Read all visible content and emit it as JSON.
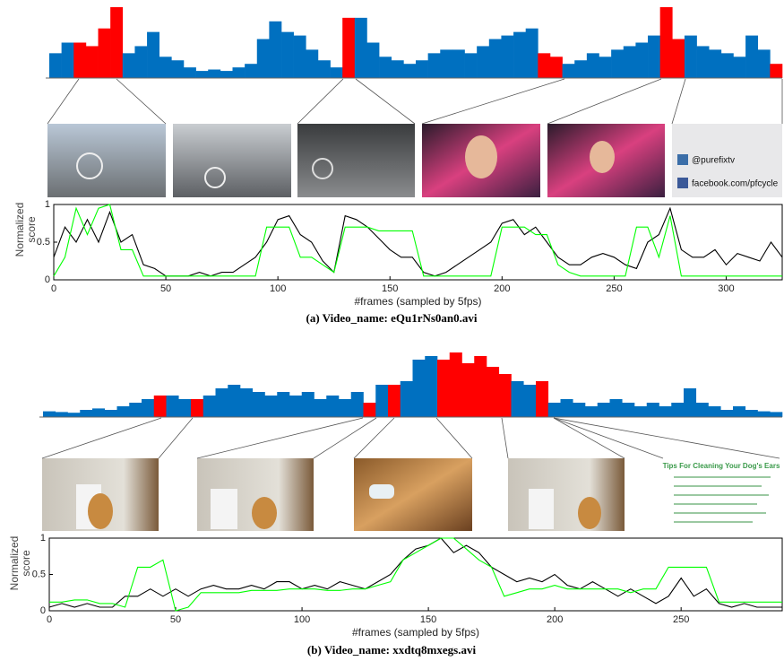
{
  "chart_data": [
    {
      "type": "bar",
      "values": [
        0.35,
        0.5,
        0.5,
        0.45,
        0.7,
        1.0,
        0.35,
        0.45,
        0.65,
        0.3,
        0.25,
        0.15,
        0.1,
        0.12,
        0.1,
        0.15,
        0.2,
        0.55,
        0.8,
        0.65,
        0.6,
        0.4,
        0.25,
        0.15,
        0.85,
        0.85,
        0.5,
        0.3,
        0.25,
        0.2,
        0.25,
        0.35,
        0.4,
        0.4,
        0.35,
        0.45,
        0.55,
        0.6,
        0.65,
        0.7,
        0.35,
        0.3,
        0.2,
        0.25,
        0.35,
        0.3,
        0.4,
        0.45,
        0.5,
        0.6,
        1.0,
        0.55,
        0.6,
        0.45,
        0.4,
        0.35,
        0.3,
        0.6,
        0.4,
        0.2
      ],
      "colors": [
        "#0070c0",
        "#0070c0",
        "#ff0000",
        "#ff0000",
        "#ff0000",
        "#ff0000",
        "#0070c0",
        "#0070c0",
        "#0070c0",
        "#0070c0",
        "#0070c0",
        "#0070c0",
        "#0070c0",
        "#0070c0",
        "#0070c0",
        "#0070c0",
        "#0070c0",
        "#0070c0",
        "#0070c0",
        "#0070c0",
        "#0070c0",
        "#0070c0",
        "#0070c0",
        "#0070c0",
        "#ff0000",
        "#0070c0",
        "#0070c0",
        "#0070c0",
        "#0070c0",
        "#0070c0",
        "#0070c0",
        "#0070c0",
        "#0070c0",
        "#0070c0",
        "#0070c0",
        "#0070c0",
        "#0070c0",
        "#0070c0",
        "#0070c0",
        "#0070c0",
        "#ff0000",
        "#ff0000",
        "#0070c0",
        "#0070c0",
        "#0070c0",
        "#0070c0",
        "#0070c0",
        "#0070c0",
        "#0070c0",
        "#0070c0",
        "#ff0000",
        "#ff0000",
        "#0070c0",
        "#0070c0",
        "#0070c0",
        "#0070c0",
        "#0070c0",
        "#0070c0",
        "#0070c0",
        "#ff0000"
      ]
    },
    {
      "type": "line",
      "xlabel": "#frames (sampled by 5fps)",
      "ylabel": "Normalized score",
      "x": [
        0,
        5,
        10,
        15,
        20,
        25,
        30,
        35,
        40,
        45,
        50,
        55,
        60,
        65,
        70,
        75,
        80,
        85,
        90,
        95,
        100,
        105,
        110,
        115,
        120,
        125,
        130,
        135,
        140,
        145,
        150,
        155,
        160,
        165,
        170,
        175,
        180,
        185,
        190,
        195,
        200,
        205,
        210,
        215,
        220,
        225,
        230,
        235,
        240,
        245,
        250,
        255,
        260,
        265,
        270,
        275,
        280,
        285,
        290,
        295,
        300,
        305,
        310,
        315,
        320,
        325
      ],
      "series": [
        {
          "color": "#000000",
          "values": [
            0.3,
            0.7,
            0.5,
            0.8,
            0.5,
            0.9,
            0.5,
            0.6,
            0.2,
            0.15,
            0.05,
            0.05,
            0.05,
            0.1,
            0.05,
            0.1,
            0.1,
            0.2,
            0.3,
            0.5,
            0.8,
            0.85,
            0.6,
            0.5,
            0.25,
            0.1,
            0.85,
            0.8,
            0.7,
            0.55,
            0.4,
            0.3,
            0.3,
            0.1,
            0.05,
            0.1,
            0.2,
            0.3,
            0.4,
            0.5,
            0.75,
            0.8,
            0.6,
            0.7,
            0.5,
            0.3,
            0.2,
            0.2,
            0.3,
            0.35,
            0.3,
            0.2,
            0.15,
            0.5,
            0.6,
            0.95,
            0.4,
            0.3,
            0.3,
            0.4,
            0.2,
            0.35,
            0.3,
            0.25,
            0.5,
            0.3
          ]
        },
        {
          "color": "#00ff00",
          "values": [
            0.05,
            0.3,
            0.95,
            0.6,
            0.95,
            1.0,
            0.4,
            0.4,
            0.05,
            0.05,
            0.05,
            0.05,
            0.05,
            0.05,
            0.05,
            0.05,
            0.05,
            0.05,
            0.05,
            0.7,
            0.7,
            0.7,
            0.3,
            0.3,
            0.2,
            0.1,
            0.7,
            0.7,
            0.7,
            0.65,
            0.65,
            0.65,
            0.65,
            0.05,
            0.05,
            0.05,
            0.05,
            0.05,
            0.05,
            0.05,
            0.7,
            0.7,
            0.7,
            0.6,
            0.6,
            0.2,
            0.1,
            0.05,
            0.05,
            0.05,
            0.05,
            0.05,
            0.7,
            0.7,
            0.3,
            0.85,
            0.05,
            0.05,
            0.05,
            0.05,
            0.05,
            0.05,
            0.05,
            0.05,
            0.05,
            0.05
          ]
        }
      ],
      "xlim": [
        0,
        325
      ],
      "xticks": [
        0,
        50,
        100,
        150,
        200,
        250,
        300
      ],
      "ylim": [
        0,
        1
      ],
      "yticks": [
        0,
        0.5,
        1
      ]
    },
    {
      "type": "bar",
      "values": [
        0.08,
        0.07,
        0.06,
        0.1,
        0.12,
        0.1,
        0.15,
        0.2,
        0.25,
        0.3,
        0.3,
        0.25,
        0.25,
        0.3,
        0.4,
        0.45,
        0.4,
        0.35,
        0.3,
        0.35,
        0.3,
        0.35,
        0.25,
        0.3,
        0.25,
        0.35,
        0.2,
        0.45,
        0.45,
        0.5,
        0.8,
        0.85,
        0.8,
        0.9,
        0.75,
        0.85,
        0.7,
        0.6,
        0.5,
        0.45,
        0.5,
        0.2,
        0.25,
        0.2,
        0.15,
        0.2,
        0.25,
        0.2,
        0.15,
        0.2,
        0.15,
        0.2,
        0.4,
        0.2,
        0.15,
        0.1,
        0.15,
        0.1,
        0.08,
        0.07
      ],
      "colors": [
        "#0070c0",
        "#0070c0",
        "#0070c0",
        "#0070c0",
        "#0070c0",
        "#0070c0",
        "#0070c0",
        "#0070c0",
        "#0070c0",
        "#ff0000",
        "#0070c0",
        "#0070c0",
        "#ff0000",
        "#0070c0",
        "#0070c0",
        "#0070c0",
        "#0070c0",
        "#0070c0",
        "#0070c0",
        "#0070c0",
        "#0070c0",
        "#0070c0",
        "#0070c0",
        "#0070c0",
        "#0070c0",
        "#0070c0",
        "#ff0000",
        "#0070c0",
        "#ff0000",
        "#0070c0",
        "#0070c0",
        "#0070c0",
        "#ff0000",
        "#ff0000",
        "#ff0000",
        "#ff0000",
        "#ff0000",
        "#ff0000",
        "#0070c0",
        "#0070c0",
        "#ff0000",
        "#0070c0",
        "#0070c0",
        "#0070c0",
        "#0070c0",
        "#0070c0",
        "#0070c0",
        "#0070c0",
        "#0070c0",
        "#0070c0",
        "#0070c0",
        "#0070c0",
        "#0070c0",
        "#0070c0",
        "#0070c0",
        "#0070c0",
        "#0070c0",
        "#0070c0",
        "#0070c0",
        "#0070c0"
      ]
    },
    {
      "type": "line",
      "xlabel": "#frames (sampled by 5fps)",
      "ylabel": "Normalized score",
      "x": [
        0,
        5,
        10,
        15,
        20,
        25,
        30,
        35,
        40,
        45,
        50,
        55,
        60,
        65,
        70,
        75,
        80,
        85,
        90,
        95,
        100,
        105,
        110,
        115,
        120,
        125,
        130,
        135,
        140,
        145,
        150,
        155,
        160,
        165,
        170,
        175,
        180,
        185,
        190,
        195,
        200,
        205,
        210,
        215,
        220,
        225,
        230,
        235,
        240,
        245,
        250,
        255,
        260,
        265,
        270,
        275,
        280,
        285,
        290
      ],
      "series": [
        {
          "color": "#000000",
          "values": [
            0.05,
            0.1,
            0.05,
            0.1,
            0.05,
            0.05,
            0.2,
            0.2,
            0.3,
            0.2,
            0.3,
            0.2,
            0.3,
            0.35,
            0.3,
            0.3,
            0.35,
            0.3,
            0.4,
            0.4,
            0.3,
            0.35,
            0.3,
            0.4,
            0.35,
            0.3,
            0.4,
            0.5,
            0.7,
            0.85,
            0.9,
            1.0,
            0.8,
            0.9,
            0.8,
            0.6,
            0.5,
            0.4,
            0.45,
            0.4,
            0.5,
            0.35,
            0.3,
            0.4,
            0.3,
            0.2,
            0.3,
            0.2,
            0.1,
            0.2,
            0.45,
            0.2,
            0.3,
            0.1,
            0.05,
            0.1,
            0.05,
            0.05,
            0.05
          ]
        },
        {
          "color": "#00ff00",
          "values": [
            0.12,
            0.12,
            0.15,
            0.15,
            0.1,
            0.1,
            0.05,
            0.6,
            0.6,
            0.7,
            0.0,
            0.05,
            0.25,
            0.25,
            0.25,
            0.25,
            0.28,
            0.28,
            0.28,
            0.3,
            0.3,
            0.3,
            0.28,
            0.28,
            0.3,
            0.3,
            0.35,
            0.4,
            0.7,
            0.8,
            0.9,
            1.0,
            1.0,
            0.85,
            0.7,
            0.6,
            0.2,
            0.25,
            0.3,
            0.3,
            0.35,
            0.3,
            0.3,
            0.3,
            0.3,
            0.3,
            0.25,
            0.3,
            0.3,
            0.6,
            0.6,
            0.6,
            0.6,
            0.12,
            0.12,
            0.12,
            0.12,
            0.12,
            0.12
          ]
        }
      ],
      "xlim": [
        0,
        290
      ],
      "xticks": [
        0,
        50,
        100,
        150,
        200,
        250
      ],
      "ylim": [
        0,
        1
      ],
      "yticks": [
        0,
        0.5,
        1
      ]
    }
  ],
  "captions": [
    "(a) Video_name: eQu1rNs0an0.avi",
    "(b) Video_name: xxdtq8mxegs.avi"
  ],
  "thumbnail_texts": [
    "@purefixtv",
    "facebook.com/pfcycle",
    "Tips For Cleaning Your Dog's Ears"
  ]
}
